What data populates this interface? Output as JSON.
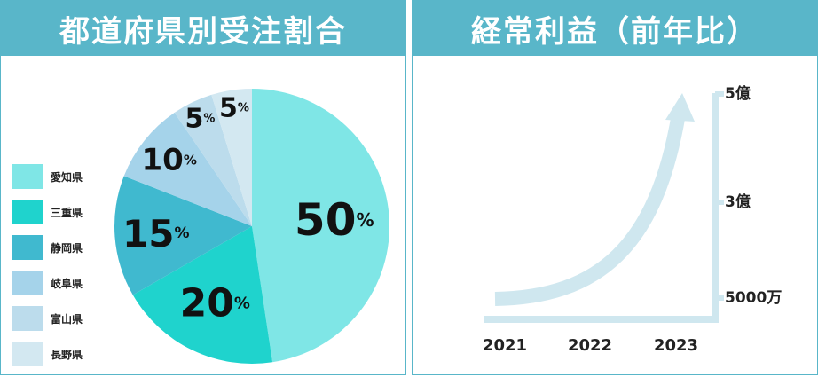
{
  "pie_panel": {
    "title": "都道府県別受注割合"
  },
  "profit_panel": {
    "title": "経常利益（前年比）"
  },
  "chart_data": [
    {
      "type": "pie",
      "title": "都道府県別受注割合",
      "unit": "%",
      "slices": [
        {
          "label": "愛知県",
          "value": 50,
          "color": "#7fe6e6"
        },
        {
          "label": "三重県",
          "value": 20,
          "color": "#1fd3cd"
        },
        {
          "label": "静岡県",
          "value": 15,
          "color": "#40b9cf"
        },
        {
          "label": "岐阜県",
          "value": 10,
          "color": "#a5d3ea"
        },
        {
          "label": "富山県",
          "value": 5,
          "color": "#bcdcec"
        },
        {
          "label": "長野県",
          "value": 5,
          "color": "#d3e8f1"
        }
      ],
      "legend": "left"
    },
    {
      "type": "line",
      "title": "経常利益（前年比）",
      "categories": [
        "2021",
        "2022",
        "2023"
      ],
      "y_ticks": [
        "5000万",
        "3億",
        "5億"
      ],
      "trend": "exponential-growth",
      "color": "#cfe7ef"
    }
  ]
}
